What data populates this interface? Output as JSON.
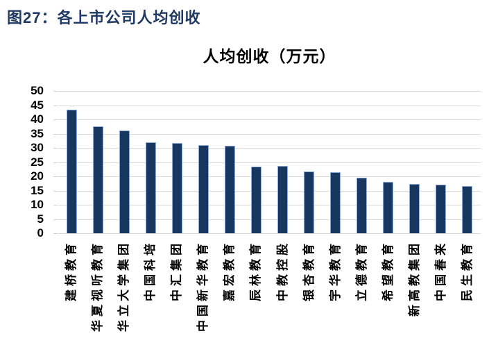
{
  "page": {
    "caption": "图27：各上市公司人均创收"
  },
  "chart_data": {
    "type": "bar",
    "title": "人均创收（万元）",
    "categories": [
      "建桥教育",
      "华夏视听教育",
      "华立大学集团",
      "中国科培",
      "中汇集团",
      "中国新华教育",
      "嘉宏教育",
      "辰林教育",
      "中教控股",
      "银杏教育",
      "宇华教育",
      "立德教育",
      "希望教育",
      "新高教集团",
      "中国春来",
      "民生教育"
    ],
    "values": [
      43.5,
      37.5,
      36.0,
      32.0,
      31.6,
      30.9,
      30.8,
      23.4,
      23.6,
      21.6,
      21.4,
      19.5,
      18.0,
      17.4,
      17.0,
      16.5
    ],
    "xlabel": "",
    "ylabel": "",
    "ylim": [
      0,
      50
    ],
    "yticks": [
      0,
      5,
      10,
      15,
      20,
      25,
      30,
      35,
      40,
      45,
      50
    ],
    "grid": "horizontal-only",
    "legend_position": "none",
    "colors": {
      "bar_fill": "#17375E",
      "bar_border": "#8FAADC",
      "gridline": "#D9D9D9",
      "axis_line": "#D9D9D9",
      "tick": "#C9CFD6",
      "caption": "#1F3864",
      "title": "#000000"
    }
  }
}
